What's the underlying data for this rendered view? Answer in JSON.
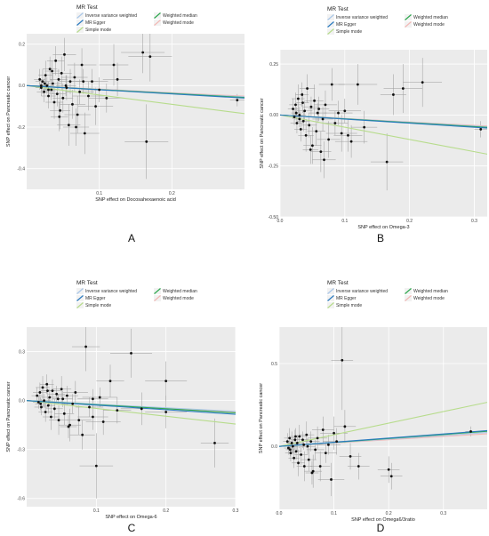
{
  "legend": {
    "title": "MR Test",
    "methods": [
      {
        "key": "ivw",
        "label": "Inverse variance weighted",
        "color": "#a9c7e8"
      },
      {
        "key": "wmed",
        "label": "Weighted median",
        "color": "#2fa84f"
      },
      {
        "key": "egger",
        "label": "MR Egger",
        "color": "#2b7bc0"
      },
      {
        "key": "wmode",
        "label": "Weighted mode",
        "color": "#f2b8b5"
      },
      {
        "key": "smode",
        "label": "Simple mode",
        "color": "#b7dc8c"
      }
    ]
  },
  "chart_data": [
    {
      "type": "scatter",
      "letter": "A",
      "xlabel": "SNP effect on  Docosahexaenoic acid",
      "ylabel": "SNP effect on Pancreatic cancer",
      "xlim": [
        0,
        0.3
      ],
      "ylim": [
        -0.5,
        0.25
      ],
      "xticks": [
        {
          "v": 0.1,
          "t": "0.1"
        },
        {
          "v": 0.2,
          "t": "0.2"
        }
      ],
      "yticks": [
        {
          "v": 0.2,
          "t": "0.2"
        },
        {
          "v": 0.0,
          "t": "0.0"
        },
        {
          "v": -0.2,
          "t": "-0.2"
        },
        {
          "v": -0.4,
          "t": "-0.4"
        }
      ],
      "lines": {
        "ivw": -0.18,
        "egger": -0.2,
        "wmed": -0.19,
        "wmode": -0.17,
        "smode": -0.45
      },
      "points": [
        [
          0.018,
          0.03,
          0.008,
          0.05
        ],
        [
          0.02,
          -0.01,
          0.008,
          0.04
        ],
        [
          0.022,
          0.02,
          0.01,
          0.06
        ],
        [
          0.024,
          -0.03,
          0.01,
          0.05
        ],
        [
          0.026,
          0.05,
          0.01,
          0.07
        ],
        [
          0.028,
          0.0,
          0.01,
          0.04
        ],
        [
          0.03,
          -0.05,
          0.01,
          0.06
        ],
        [
          0.032,
          0.08,
          0.01,
          0.06
        ],
        [
          0.034,
          -0.02,
          0.01,
          0.05
        ],
        [
          0.036,
          0.01,
          0.012,
          0.05
        ],
        [
          0.038,
          -0.08,
          0.012,
          0.08
        ],
        [
          0.04,
          0.12,
          0.012,
          0.07
        ],
        [
          0.042,
          -0.04,
          0.012,
          0.06
        ],
        [
          0.044,
          0.03,
          0.012,
          0.05
        ],
        [
          0.046,
          -0.12,
          0.014,
          0.09
        ],
        [
          0.048,
          0.06,
          0.014,
          0.08
        ],
        [
          0.05,
          -0.06,
          0.014,
          0.07
        ],
        [
          0.052,
          0.15,
          0.016,
          0.08
        ],
        [
          0.055,
          -0.01,
          0.015,
          0.06
        ],
        [
          0.058,
          -0.19,
          0.016,
          0.1
        ],
        [
          0.06,
          0.02,
          0.016,
          0.06
        ],
        [
          0.063,
          -0.09,
          0.018,
          0.07
        ],
        [
          0.066,
          0.04,
          0.018,
          0.07
        ],
        [
          0.07,
          -0.14,
          0.018,
          0.09
        ],
        [
          0.073,
          -0.03,
          0.02,
          0.06
        ],
        [
          0.076,
          0.1,
          0.02,
          0.08
        ],
        [
          0.08,
          -0.23,
          0.02,
          0.1
        ],
        [
          0.085,
          -0.05,
          0.022,
          0.07
        ],
        [
          0.09,
          0.02,
          0.022,
          0.06
        ],
        [
          0.095,
          -0.1,
          0.024,
          0.09
        ],
        [
          0.1,
          -0.02,
          0.025,
          0.06
        ],
        [
          0.11,
          -0.06,
          0.025,
          0.07
        ],
        [
          0.12,
          0.1,
          0.02,
          0.1
        ],
        [
          0.125,
          0.03,
          0.02,
          0.08
        ],
        [
          0.16,
          0.16,
          0.03,
          0.1
        ],
        [
          0.17,
          0.14,
          0.03,
          0.12
        ],
        [
          0.165,
          -0.27,
          0.03,
          0.18
        ],
        [
          0.29,
          -0.07,
          0.01,
          0.03
        ],
        [
          0.035,
          0.07,
          0.01,
          0.05
        ],
        [
          0.03,
          -0.02,
          0.008,
          0.04
        ],
        [
          0.025,
          0.01,
          0.008,
          0.03
        ],
        [
          0.02,
          0.0,
          0.008,
          0.03
        ],
        [
          0.045,
          -0.15,
          0.012,
          0.07
        ],
        [
          0.068,
          -0.2,
          0.018,
          0.09
        ],
        [
          0.078,
          0.02,
          0.02,
          0.06
        ],
        [
          0.054,
          0.0,
          0.014,
          0.05
        ]
      ]
    },
    {
      "type": "scatter",
      "letter": "B",
      "xlabel": "SNP effect on  Omega-3",
      "ylabel": "SNP effect on Pancreatic cancer",
      "xlim": [
        0,
        0.32
      ],
      "ylim": [
        -0.5,
        0.32
      ],
      "xticks": [
        {
          "v": 0.0,
          "t": "0.0"
        },
        {
          "v": 0.1,
          "t": "0.1"
        },
        {
          "v": 0.2,
          "t": "0.2"
        },
        {
          "v": 0.3,
          "t": "0.3"
        }
      ],
      "yticks": [
        {
          "v": 0.25,
          "t": "0.25"
        },
        {
          "v": 0.0,
          "t": "0.00"
        },
        {
          "v": -0.25,
          "t": "-0.25"
        },
        {
          "v": -0.5,
          "t": "-0.50"
        }
      ],
      "lines": {
        "ivw": -0.18,
        "egger": -0.2,
        "wmed": -0.19,
        "wmode": -0.17,
        "smode": -0.6
      },
      "points": [
        [
          0.02,
          0.03,
          0.008,
          0.05
        ],
        [
          0.022,
          -0.01,
          0.008,
          0.04
        ],
        [
          0.024,
          0.05,
          0.01,
          0.06
        ],
        [
          0.026,
          -0.04,
          0.01,
          0.05
        ],
        [
          0.028,
          0.08,
          0.01,
          0.07
        ],
        [
          0.03,
          0.0,
          0.01,
          0.04
        ],
        [
          0.032,
          -0.07,
          0.01,
          0.06
        ],
        [
          0.034,
          0.1,
          0.01,
          0.06
        ],
        [
          0.036,
          -0.03,
          0.01,
          0.05
        ],
        [
          0.038,
          0.02,
          0.012,
          0.05
        ],
        [
          0.04,
          -0.1,
          0.012,
          0.08
        ],
        [
          0.042,
          0.13,
          0.012,
          0.07
        ],
        [
          0.045,
          -0.05,
          0.012,
          0.06
        ],
        [
          0.048,
          0.04,
          0.012,
          0.05
        ],
        [
          0.05,
          -0.15,
          0.014,
          0.09
        ],
        [
          0.053,
          0.07,
          0.014,
          0.08
        ],
        [
          0.056,
          -0.08,
          0.014,
          0.07
        ],
        [
          0.06,
          0.03,
          0.016,
          0.06
        ],
        [
          0.063,
          -0.18,
          0.016,
          0.1
        ],
        [
          0.066,
          -0.02,
          0.016,
          0.06
        ],
        [
          0.07,
          0.05,
          0.018,
          0.07
        ],
        [
          0.075,
          -0.12,
          0.018,
          0.09
        ],
        [
          0.08,
          0.15,
          0.02,
          0.08
        ],
        [
          0.085,
          -0.04,
          0.02,
          0.06
        ],
        [
          0.09,
          0.01,
          0.022,
          0.06
        ],
        [
          0.095,
          -0.09,
          0.024,
          0.09
        ],
        [
          0.1,
          0.02,
          0.025,
          0.06
        ],
        [
          0.11,
          -0.13,
          0.025,
          0.08
        ],
        [
          0.12,
          0.15,
          0.03,
          0.1
        ],
        [
          0.13,
          -0.06,
          0.02,
          0.08
        ],
        [
          0.175,
          0.1,
          0.02,
          0.1
        ],
        [
          0.19,
          0.13,
          0.03,
          0.12
        ],
        [
          0.22,
          0.16,
          0.03,
          0.12
        ],
        [
          0.165,
          -0.23,
          0.025,
          0.14
        ],
        [
          0.31,
          -0.07,
          0.01,
          0.04
        ],
        [
          0.035,
          0.06,
          0.01,
          0.05
        ],
        [
          0.03,
          -0.02,
          0.008,
          0.04
        ],
        [
          0.025,
          0.01,
          0.008,
          0.03
        ],
        [
          0.047,
          -0.17,
          0.012,
          0.07
        ],
        [
          0.068,
          -0.22,
          0.018,
          0.09
        ],
        [
          0.058,
          0.01,
          0.014,
          0.05
        ],
        [
          0.105,
          -0.1,
          0.022,
          0.08
        ]
      ]
    },
    {
      "type": "scatter",
      "letter": "C",
      "xlabel": "SNP effect on Omega-6",
      "ylabel": "SNP effect on Pancreatic cancer",
      "xlim": [
        0,
        0.3
      ],
      "ylim": [
        -0.65,
        0.45
      ],
      "xticks": [
        {
          "v": 0.1,
          "t": "0.1"
        },
        {
          "v": 0.2,
          "t": "0.2"
        },
        {
          "v": 0.3,
          "t": "0.3"
        }
      ],
      "yticks": [
        {
          "v": 0.3,
          "t": "0.3"
        },
        {
          "v": 0.0,
          "t": "0.0"
        },
        {
          "v": -0.3,
          "t": "-0.3"
        },
        {
          "v": -0.6,
          "t": "-0.6"
        }
      ],
      "lines": {
        "ivw": -0.22,
        "egger": -0.28,
        "wmed": -0.25,
        "wmode": -0.24,
        "smode": -0.48
      },
      "points": [
        [
          0.015,
          0.03,
          0.008,
          0.05
        ],
        [
          0.017,
          -0.01,
          0.008,
          0.04
        ],
        [
          0.019,
          0.05,
          0.01,
          0.06
        ],
        [
          0.021,
          -0.04,
          0.01,
          0.05
        ],
        [
          0.023,
          0.08,
          0.01,
          0.07
        ],
        [
          0.025,
          0.0,
          0.01,
          0.04
        ],
        [
          0.027,
          -0.07,
          0.01,
          0.06
        ],
        [
          0.029,
          0.1,
          0.01,
          0.06
        ],
        [
          0.031,
          -0.03,
          0.01,
          0.05
        ],
        [
          0.033,
          0.02,
          0.012,
          0.05
        ],
        [
          0.035,
          -0.1,
          0.012,
          0.08
        ],
        [
          0.037,
          0.06,
          0.012,
          0.07
        ],
        [
          0.04,
          -0.05,
          0.012,
          0.06
        ],
        [
          0.043,
          0.04,
          0.012,
          0.05
        ],
        [
          0.046,
          -0.12,
          0.014,
          0.09
        ],
        [
          0.05,
          0.07,
          0.014,
          0.08
        ],
        [
          0.054,
          -0.08,
          0.014,
          0.07
        ],
        [
          0.058,
          0.03,
          0.016,
          0.06
        ],
        [
          0.062,
          -0.15,
          0.016,
          0.1
        ],
        [
          0.066,
          -0.02,
          0.016,
          0.06
        ],
        [
          0.07,
          0.05,
          0.018,
          0.07
        ],
        [
          0.075,
          -0.12,
          0.018,
          0.09
        ],
        [
          0.085,
          0.33,
          0.02,
          0.15
        ],
        [
          0.09,
          -0.04,
          0.02,
          0.06
        ],
        [
          0.095,
          0.01,
          0.022,
          0.06
        ],
        [
          0.1,
          -0.4,
          0.024,
          0.2
        ],
        [
          0.105,
          0.02,
          0.025,
          0.06
        ],
        [
          0.11,
          -0.13,
          0.025,
          0.08
        ],
        [
          0.12,
          0.12,
          0.02,
          0.1
        ],
        [
          0.13,
          -0.06,
          0.02,
          0.08
        ],
        [
          0.15,
          0.29,
          0.03,
          0.15
        ],
        [
          0.165,
          -0.05,
          0.03,
          0.1
        ],
        [
          0.2,
          0.12,
          0.03,
          0.12
        ],
        [
          0.2,
          -0.07,
          0.03,
          0.1
        ],
        [
          0.27,
          -0.26,
          0.02,
          0.15
        ],
        [
          0.03,
          0.06,
          0.01,
          0.05
        ],
        [
          0.02,
          -0.02,
          0.008,
          0.04
        ],
        [
          0.045,
          0.01,
          0.008,
          0.03
        ],
        [
          0.06,
          -0.16,
          0.012,
          0.07
        ],
        [
          0.08,
          -0.21,
          0.018,
          0.09
        ],
        [
          0.052,
          0.01,
          0.014,
          0.05
        ],
        [
          0.095,
          -0.1,
          0.022,
          0.08
        ]
      ]
    },
    {
      "type": "scatter",
      "letter": "D",
      "xlabel": "SNP effect on  Omega6/3ratio",
      "ylabel": "SNP effect on Pancreatic cancer",
      "xlim": [
        0,
        0.38
      ],
      "ylim": [
        -0.38,
        0.72
      ],
      "xticks": [
        {
          "v": 0.0,
          "t": "0.0"
        },
        {
          "v": 0.1,
          "t": "0.1"
        },
        {
          "v": 0.2,
          "t": "0.2"
        },
        {
          "v": 0.3,
          "t": "0.3"
        }
      ],
      "yticks": [
        {
          "v": 0.5,
          "t": "0.5"
        },
        {
          "v": 0.0,
          "t": "0.0"
        }
      ],
      "lines": {
        "ivw": 0.22,
        "egger": 0.25,
        "wmed": 0.24,
        "wmode": 0.2,
        "smode": 0.7
      },
      "points": [
        [
          0.015,
          0.03,
          0.008,
          0.05
        ],
        [
          0.017,
          -0.01,
          0.008,
          0.04
        ],
        [
          0.019,
          0.05,
          0.01,
          0.06
        ],
        [
          0.021,
          -0.04,
          0.01,
          0.05
        ],
        [
          0.023,
          0.02,
          0.01,
          0.07
        ],
        [
          0.025,
          0.0,
          0.01,
          0.04
        ],
        [
          0.027,
          -0.07,
          0.01,
          0.06
        ],
        [
          0.029,
          0.04,
          0.01,
          0.06
        ],
        [
          0.031,
          -0.03,
          0.01,
          0.05
        ],
        [
          0.033,
          0.02,
          0.012,
          0.05
        ],
        [
          0.035,
          -0.1,
          0.012,
          0.08
        ],
        [
          0.037,
          0.06,
          0.012,
          0.07
        ],
        [
          0.04,
          -0.05,
          0.012,
          0.06
        ],
        [
          0.043,
          0.04,
          0.012,
          0.05
        ],
        [
          0.046,
          -0.12,
          0.014,
          0.09
        ],
        [
          0.05,
          0.07,
          0.014,
          0.08
        ],
        [
          0.054,
          -0.08,
          0.014,
          0.07
        ],
        [
          0.058,
          0.03,
          0.016,
          0.06
        ],
        [
          0.062,
          -0.15,
          0.016,
          0.1
        ],
        [
          0.066,
          -0.02,
          0.016,
          0.06
        ],
        [
          0.07,
          0.05,
          0.018,
          0.07
        ],
        [
          0.075,
          -0.12,
          0.018,
          0.09
        ],
        [
          0.08,
          0.1,
          0.02,
          0.08
        ],
        [
          0.085,
          -0.04,
          0.02,
          0.06
        ],
        [
          0.09,
          0.01,
          0.022,
          0.06
        ],
        [
          0.095,
          -0.2,
          0.024,
          0.1
        ],
        [
          0.1,
          0.08,
          0.025,
          0.1
        ],
        [
          0.105,
          0.03,
          0.025,
          0.08
        ],
        [
          0.115,
          0.52,
          0.02,
          0.3
        ],
        [
          0.12,
          0.12,
          0.02,
          0.1
        ],
        [
          0.13,
          -0.06,
          0.02,
          0.08
        ],
        [
          0.145,
          -0.12,
          0.02,
          0.08
        ],
        [
          0.2,
          -0.14,
          0.02,
          0.08
        ],
        [
          0.205,
          -0.18,
          0.02,
          0.08
        ],
        [
          0.35,
          0.09,
          0.01,
          0.03
        ],
        [
          0.03,
          0.06,
          0.01,
          0.05
        ],
        [
          0.02,
          -0.02,
          0.008,
          0.04
        ],
        [
          0.045,
          0.01,
          0.008,
          0.03
        ],
        [
          0.06,
          -0.16,
          0.012,
          0.07
        ],
        [
          0.052,
          0.0,
          0.014,
          0.05
        ]
      ]
    }
  ]
}
